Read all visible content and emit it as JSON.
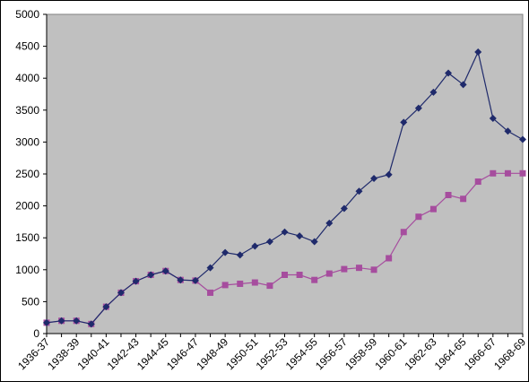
{
  "chart_data": {
    "type": "line",
    "categories": [
      "1936-37",
      "1937-38",
      "1938-39",
      "1939-40",
      "1940-41",
      "1941-42",
      "1942-43",
      "1943-44",
      "1944-45",
      "1945-46",
      "1946-47",
      "1947-48",
      "1948-49",
      "1949-50",
      "1950-51",
      "1951-52",
      "1952-53",
      "1953-54",
      "1954-55",
      "1955-56",
      "1956-57",
      "1957-58",
      "1958-59",
      "1959-60",
      "1960-61",
      "1961-62",
      "1962-63",
      "1963-64",
      "1964-65",
      "1965-66",
      "1966-67",
      "1967-68",
      "1968-69"
    ],
    "category_tick_labels": [
      "1936-37",
      "1938-39",
      "1940-41",
      "1942-43",
      "1944-45",
      "1946-47",
      "1948-49",
      "1950-51",
      "1952-53",
      "1954-55",
      "1956-57",
      "1958-59",
      "1960-61",
      "1962-63",
      "1964-65",
      "1966-67",
      "1968-69"
    ],
    "series": [
      {
        "color": "#1f2a6b",
        "marker": "diamond",
        "values": [
          170,
          200,
          200,
          150,
          420,
          640,
          820,
          920,
          980,
          840,
          830,
          1030,
          1270,
          1230,
          1370,
          1440,
          1590,
          1530,
          1440,
          1730,
          1960,
          2230,
          2430,
          2490,
          3310,
          3530,
          3780,
          4080,
          3900,
          4410,
          3370,
          3170,
          3040
        ]
      },
      {
        "color": "#a64d9e",
        "marker": "square",
        "values": [
          170,
          200,
          200,
          150,
          420,
          640,
          820,
          920,
          980,
          840,
          830,
          640,
          760,
          780,
          800,
          750,
          920,
          920,
          840,
          940,
          1010,
          1030,
          1000,
          1180,
          1590,
          1830,
          1950,
          2170,
          2110,
          2380,
          2510,
          2510,
          2510
        ]
      }
    ],
    "ylim": [
      0,
      5000
    ],
    "y_ticks": [
      0,
      500,
      1000,
      1500,
      2000,
      2500,
      3000,
      3500,
      4000,
      4500,
      5000
    ],
    "title": "",
    "xlabel": "",
    "ylabel": "",
    "plot_background": "#c0c0c0",
    "grid": false,
    "legend": "none"
  }
}
